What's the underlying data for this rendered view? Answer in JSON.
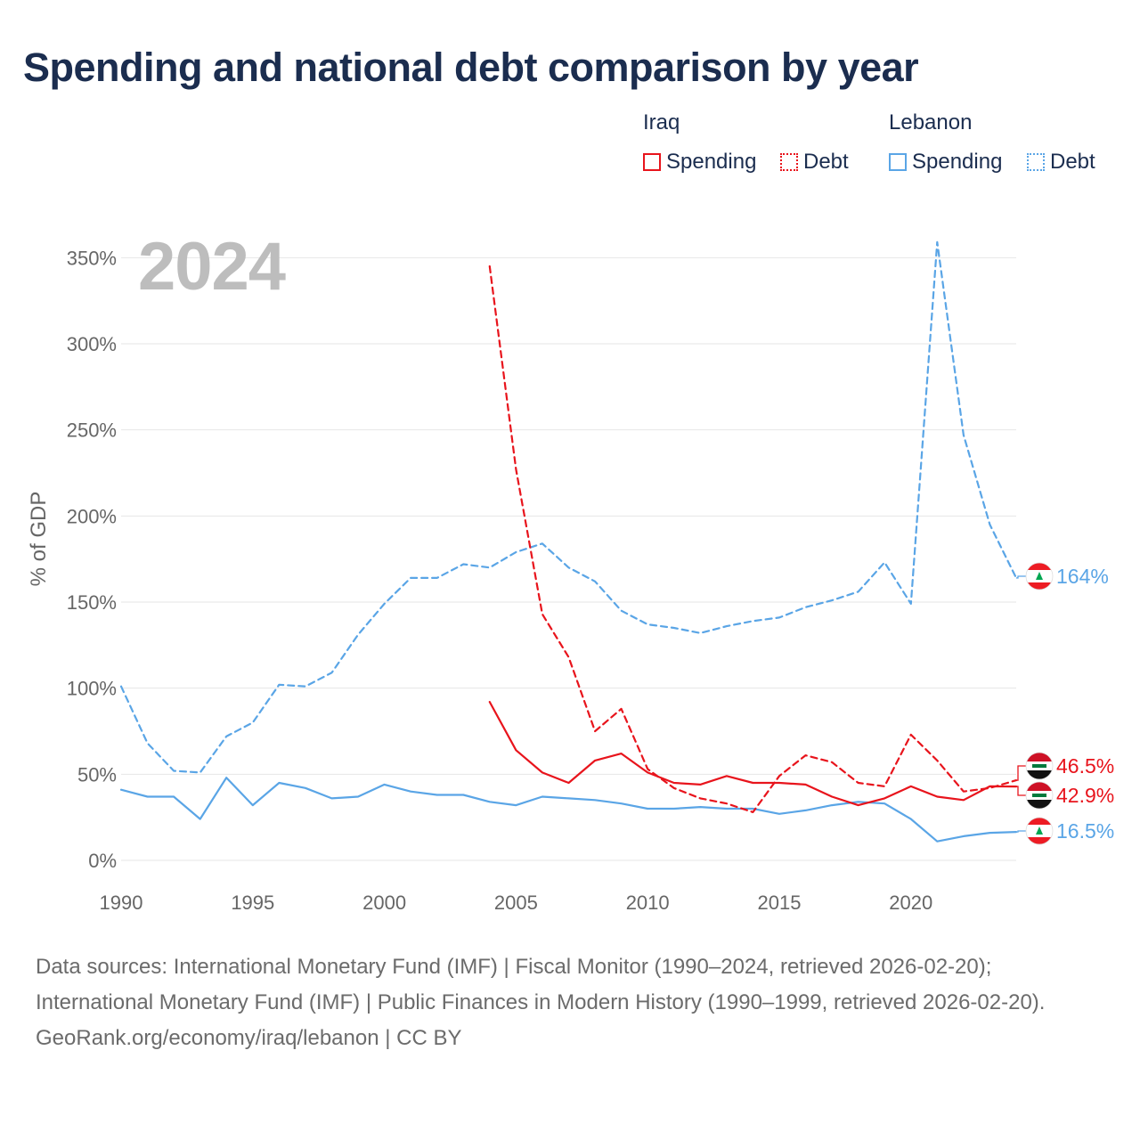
{
  "title": "Spending and national debt comparison by year",
  "current_year": "2024",
  "legend": {
    "groups": [
      {
        "name": "Iraq",
        "items": [
          {
            "label": "Spending",
            "style": "solid"
          },
          {
            "label": "Debt",
            "style": "dotted"
          }
        ]
      },
      {
        "name": "Lebanon",
        "items": [
          {
            "label": "Spending",
            "style": "solid"
          },
          {
            "label": "Debt",
            "style": "dotted"
          }
        ]
      }
    ]
  },
  "footer": {
    "sources": "Data sources: International Monetary Fund (IMF) | Fiscal Monitor (1990–2024, retrieved 2026-02-20); International Monetary Fund (IMF) | Public Finances in Modern History (1990–1999, retrieved 2026-02-20).",
    "attribution": "GeoRank.org/economy/iraq/lebanon | CC BY"
  },
  "colors": {
    "iraq": "#e8141c",
    "lebanon": "#5aa5e6",
    "title": "#1b2d4f",
    "axis_text": "#666666",
    "grid": "#e6e6e6"
  },
  "chart_data": {
    "type": "line",
    "ylabel": "% of GDP",
    "xlabel": "",
    "xlim": [
      1990,
      2024
    ],
    "ylim": [
      0,
      360
    ],
    "x_ticks": [
      1990,
      1995,
      2000,
      2005,
      2010,
      2015,
      2020
    ],
    "y_ticks": [
      0,
      50,
      100,
      150,
      200,
      250,
      300,
      350
    ],
    "y_tick_labels": [
      "0%",
      "50%",
      "100%",
      "150%",
      "200%",
      "250%",
      "300%",
      "350%"
    ],
    "grid": true,
    "series": [
      {
        "name": "Lebanon Debt",
        "country": "Lebanon",
        "style": "dashed",
        "color": "#5aa5e6",
        "x": [
          1990,
          1991,
          1992,
          1993,
          1994,
          1995,
          1996,
          1997,
          1998,
          1999,
          2000,
          2001,
          2002,
          2003,
          2004,
          2005,
          2006,
          2007,
          2008,
          2009,
          2010,
          2011,
          2012,
          2013,
          2014,
          2015,
          2016,
          2017,
          2018,
          2019,
          2020,
          2021,
          2022,
          2023,
          2024
        ],
        "values": [
          101,
          68,
          52,
          51,
          72,
          80,
          102,
          101,
          109,
          131,
          149,
          164,
          164,
          172,
          170,
          179,
          184,
          170,
          162,
          145,
          137,
          135,
          132,
          136,
          139,
          141,
          147,
          151,
          156,
          173,
          149,
          359,
          247,
          195,
          164
        ],
        "end_label": "164%",
        "flag": "lebanon"
      },
      {
        "name": "Lebanon Spending",
        "country": "Lebanon",
        "style": "solid",
        "color": "#5aa5e6",
        "x": [
          1990,
          1991,
          1992,
          1993,
          1994,
          1995,
          1996,
          1997,
          1998,
          1999,
          2000,
          2001,
          2002,
          2003,
          2004,
          2005,
          2006,
          2007,
          2008,
          2009,
          2010,
          2011,
          2012,
          2013,
          2014,
          2015,
          2016,
          2017,
          2018,
          2019,
          2020,
          2021,
          2022,
          2023,
          2024
        ],
        "values": [
          41,
          37,
          37,
          24,
          48,
          32,
          45,
          42,
          36,
          37,
          44,
          40,
          38,
          38,
          34,
          32,
          37,
          36,
          35,
          33,
          30,
          30,
          31,
          30,
          30,
          27,
          29,
          32,
          34,
          33,
          24,
          11,
          14,
          16,
          16.5
        ],
        "end_label": "16.5%",
        "flag": "lebanon"
      },
      {
        "name": "Iraq Debt",
        "country": "Iraq",
        "style": "dashed",
        "color": "#e8141c",
        "x": [
          2004,
          2005,
          2006,
          2007,
          2008,
          2009,
          2010,
          2011,
          2012,
          2013,
          2014,
          2015,
          2016,
          2017,
          2018,
          2019,
          2020,
          2021,
          2022,
          2023,
          2024
        ],
        "values": [
          345,
          227,
          143,
          118,
          75,
          88,
          53,
          42,
          36,
          33,
          28,
          49,
          61,
          57,
          45,
          43,
          73,
          58,
          40,
          42,
          46.5
        ],
        "end_label": "46.5%",
        "flag": "iraq"
      },
      {
        "name": "Iraq Spending",
        "country": "Iraq",
        "style": "solid",
        "color": "#e8141c",
        "x": [
          2004,
          2005,
          2006,
          2007,
          2008,
          2009,
          2010,
          2011,
          2012,
          2013,
          2014,
          2015,
          2016,
          2017,
          2018,
          2019,
          2020,
          2021,
          2022,
          2023,
          2024
        ],
        "values": [
          92,
          64,
          51,
          45,
          58,
          62,
          51,
          45,
          44,
          49,
          45,
          45,
          44,
          37,
          32,
          36,
          43,
          37,
          35,
          43,
          42.9
        ],
        "end_label": "42.9%",
        "flag": "iraq"
      }
    ]
  }
}
